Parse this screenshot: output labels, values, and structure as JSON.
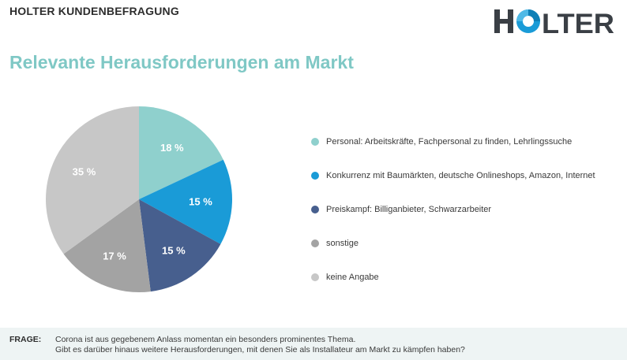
{
  "header": {
    "survey_title": "HOLTER KUNDENBEFRAGUNG",
    "logo_text": "HOLTER"
  },
  "page_title": "Relevante Herausforderungen am Markt",
  "chart_data": {
    "type": "pie",
    "unit": "%",
    "slices": [
      {
        "label": "Personal: Arbeitskräfte, Fachpersonal zu finden, Lehrlingssuche",
        "value": 18,
        "color": "#8fd0cd",
        "display": "18 %"
      },
      {
        "label": "Konkurrenz mit Baumärkten, deutsche Onlineshops, Amazon, Internet",
        "value": 15,
        "color": "#1a9bd7",
        "display": "15 %"
      },
      {
        "label": "Preiskampf: Billiganbieter, Schwarzarbeiter",
        "value": 15,
        "color": "#475f8e",
        "display": "15 %"
      },
      {
        "label": "sonstige",
        "value": 17,
        "color": "#a3a3a3",
        "display": "17 %"
      },
      {
        "label": "keine Angabe",
        "value": 35,
        "color": "#c7c7c7",
        "display": "35 %"
      }
    ],
    "legend_position": "right"
  },
  "footer": {
    "label": "FRAGE:",
    "line1": "Corona ist aus gegebenem Anlass momentan ein besonders prominentes Thema.",
    "line2": "Gibt es darüber hinaus weitere Herausforderungen, mit denen Sie als Installateur am Markt zu kämpfen haben?"
  }
}
